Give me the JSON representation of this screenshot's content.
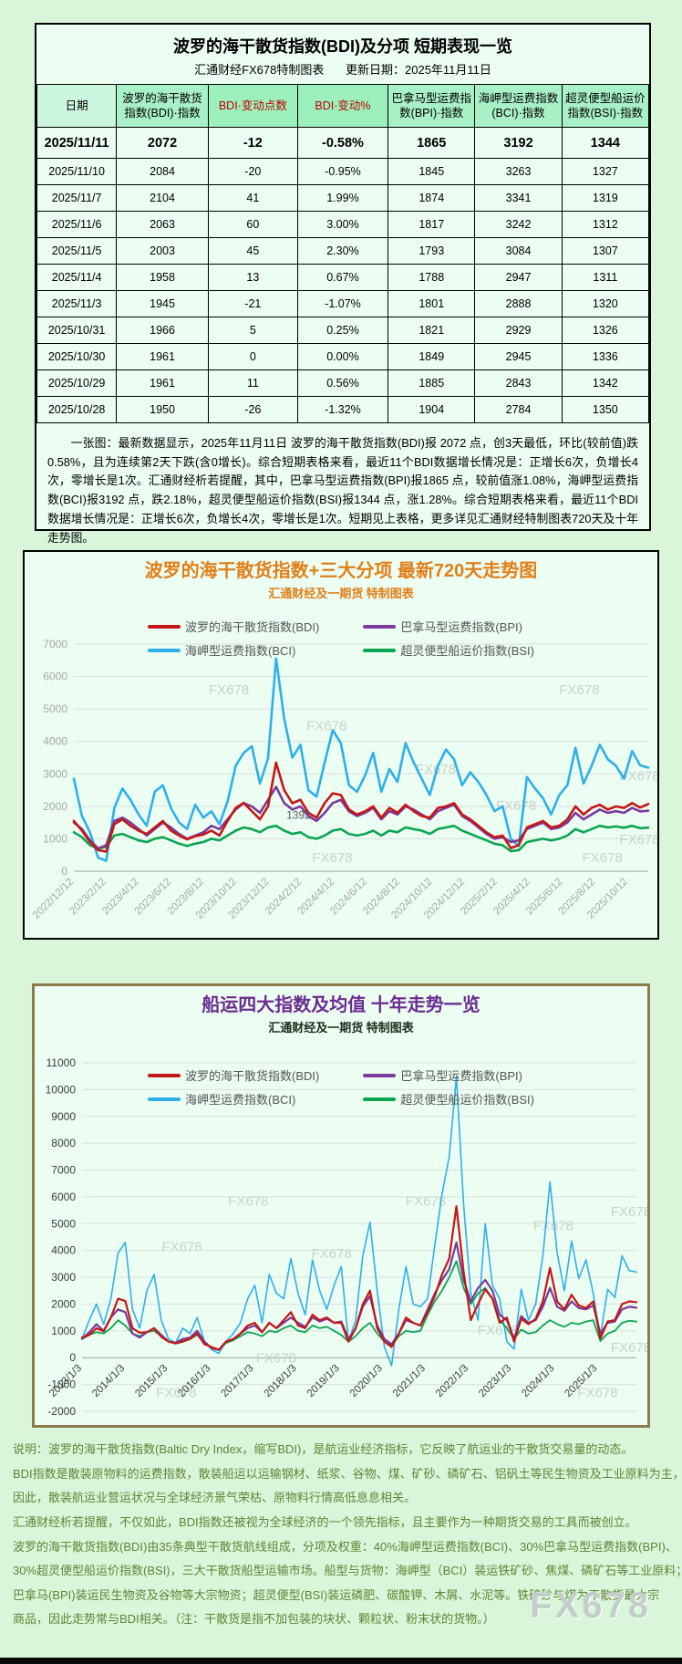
{
  "table_panel": {
    "title": "波罗的海干散货指数(BDI)及分项  短期表现一览",
    "subtitle_left": "汇通财经FX678特制图表",
    "subtitle_right": "更新日期：2025年11月11日",
    "columns": [
      "日期",
      "波罗的海干散货指数(BDI)·指数",
      "BDI·变动点数",
      "BDI·变动%",
      "巴拿马型运费指数(BPI)·指数",
      "海岬型运费指数(BCI)·指数",
      "超灵便型船运价指数(BSI)·指数"
    ],
    "rows": [
      [
        "2025/11/11",
        "2072",
        "-12",
        "-0.58%",
        "1865",
        "3192",
        "1344"
      ],
      [
        "2025/11/10",
        "2084",
        "-20",
        "-0.95%",
        "1845",
        "3263",
        "1327"
      ],
      [
        "2025/11/7",
        "2104",
        "41",
        "1.99%",
        "1874",
        "3341",
        "1319"
      ],
      [
        "2025/11/6",
        "2063",
        "60",
        "3.00%",
        "1817",
        "3242",
        "1312"
      ],
      [
        "2025/11/5",
        "2003",
        "45",
        "2.30%",
        "1793",
        "3084",
        "1307"
      ],
      [
        "2025/11/4",
        "1958",
        "13",
        "0.67%",
        "1788",
        "2947",
        "1311"
      ],
      [
        "2025/11/3",
        "1945",
        "-21",
        "-1.07%",
        "1801",
        "2888",
        "1320"
      ],
      [
        "2025/10/31",
        "1966",
        "5",
        "0.25%",
        "1821",
        "2929",
        "1326"
      ],
      [
        "2025/10/30",
        "1961",
        "0",
        "0.00%",
        "1849",
        "2945",
        "1336"
      ],
      [
        "2025/10/29",
        "1961",
        "11",
        "0.56%",
        "1885",
        "2843",
        "1342"
      ],
      [
        "2025/10/28",
        "1950",
        "-26",
        "-1.32%",
        "1904",
        "2784",
        "1350"
      ]
    ],
    "note": "一张图：最新数据显示，2025年11月11日 波罗的海干散货指数(BDI)报 2072 点，创3天最低，环比(较前值)跌0.58%，且为连续第2天下跌(含0增长)。综合短期表格来看，最近11个BDI数据增长情况是：正增长6次，负增长4次，零增长是1次。汇通财经析若提醒，其中，巴拿马型运费指数(BPI)报1865 点，较前值涨1.08%，海岬型运费指数(BCI)报3192 点，跌2.18%，超灵便型船运价指数(BSI)报1344 点，涨1.28%。综合短期表格来看，最近11个BDI数据增长情况是：正增长6次，负增长4次，零增长是1次。短期见上表格，更多详见汇通财经特制图表720天及十年走势图。"
  },
  "chart_data": [
    {
      "type": "line",
      "name": "bdi-720day",
      "title": "波罗的海干散货指数+三大分项  最新720天走势图",
      "subtitle": "汇通财经及一期货 特制图表",
      "title_color": "#e0801a",
      "subtitle_color": "#e0801a",
      "axis_color": "#a3a9a3",
      "ylim": [
        0,
        7000
      ],
      "ytick_step": 1000,
      "label_span": 0.965,
      "xlabel_base": 0,
      "watermark_text": "FX678",
      "x_labels": [
        "2022/12/12",
        "2023/2/12",
        "2023/4/12",
        "2023/6/12",
        "2023/8/12",
        "2023/10/12",
        "2023/12/12",
        "2024/2/12",
        "2024/4/12",
        "2024/6/12",
        "2024/8/12",
        "2024/10/12",
        "2024/12/12",
        "2025/2/12",
        "2025/4/12",
        "2025/6/12",
        "2025/8/12",
        "2025/10/12"
      ],
      "draw_order": [
        2,
        3,
        1,
        0
      ],
      "series": [
        {
          "id": "bdi",
          "name": "波罗的海干散货指数(BDI)",
          "color": "#c41717",
          "width": 2.6,
          "values": [
            1550,
            1250,
            900,
            650,
            605,
            1450,
            1600,
            1400,
            1250,
            1150,
            1350,
            1550,
            1250,
            1100,
            980,
            1080,
            1130,
            1250,
            1100,
            1550,
            1950,
            2105,
            1850,
            1600,
            2000,
            3346,
            2500,
            2094,
            2200,
            1800,
            1650,
            2100,
            2400,
            2350,
            1900,
            1750,
            1850,
            2000,
            1650,
            1950,
            1800,
            2050,
            1850,
            1700,
            1650,
            1950,
            2000,
            2100,
            1750,
            1600,
            1400,
            1200,
            1050,
            1100,
            715,
            800,
            1350,
            1450,
            1550,
            1350,
            1400,
            1600,
            2000,
            1750,
            1950,
            2050,
            1900,
            2000,
            1950,
            2100,
            1961,
            2072
          ]
        },
        {
          "id": "bpi",
          "name": "巴拿马型运费指数(BPI)",
          "color": "#7a3b9b",
          "width": 2.6,
          "values": [
            1500,
            1300,
            950,
            700,
            800,
            1550,
            1650,
            1500,
            1300,
            1100,
            1300,
            1500,
            1350,
            1150,
            1000,
            1100,
            1200,
            1400,
            1300,
            1600,
            1900,
            2100,
            2000,
            1800,
            2200,
            2600,
            2100,
            1900,
            2000,
            1700,
            1550,
            1800,
            2100,
            2200,
            1850,
            1700,
            1800,
            1950,
            1600,
            1850,
            1750,
            2000,
            1900,
            1750,
            1600,
            1850,
            1950,
            2050,
            1700,
            1550,
            1350,
            1150,
            1000,
            1050,
            900,
            950,
            1300,
            1400,
            1500,
            1300,
            1350,
            1500,
            1800,
            1600,
            1750,
            1900,
            1800,
            1850,
            1800,
            1950,
            1845,
            1865
          ]
        },
        {
          "id": "bci",
          "name": "海岬型运费指数(BCI)",
          "color": "#2fb0e8",
          "width": 2.6,
          "values": [
            2850,
            1700,
            1200,
            420,
            320,
            1950,
            2550,
            2200,
            1750,
            1400,
            2450,
            2650,
            1950,
            1500,
            1300,
            2050,
            1650,
            1850,
            1450,
            2150,
            3250,
            3650,
            3850,
            2700,
            3479,
            6560,
            4700,
            3500,
            3900,
            2500,
            2300,
            3350,
            4350,
            3950,
            2650,
            2450,
            2950,
            3650,
            2450,
            3150,
            2750,
            3950,
            3350,
            2850,
            2350,
            3250,
            3750,
            3450,
            2650,
            3050,
            2750,
            2350,
            1850,
            2000,
            1000,
            780,
            2900,
            2550,
            2250,
            1750,
            2350,
            2650,
            3800,
            2700,
            3250,
            3900,
            3450,
            3250,
            2850,
            3700,
            3263,
            3192
          ]
        },
        {
          "id": "bsi",
          "name": "超灵便型船运价指数(BSI)",
          "color": "#0ba552",
          "width": 2.6,
          "values": [
            1200,
            1050,
            800,
            700,
            750,
            1100,
            1150,
            1050,
            950,
            900,
            1000,
            1050,
            950,
            850,
            780,
            850,
            900,
            1000,
            950,
            1100,
            1250,
            1350,
            1300,
            1200,
            1350,
            1400,
            1250,
            1150,
            1200,
            1050,
            1000,
            1100,
            1250,
            1300,
            1150,
            1100,
            1150,
            1250,
            1100,
            1250,
            1200,
            1350,
            1300,
            1250,
            1150,
            1300,
            1350,
            1400,
            1250,
            1150,
            1050,
            950,
            850,
            800,
            620,
            650,
            900,
            950,
            1000,
            950,
            1000,
            1100,
            1300,
            1200,
            1300,
            1400,
            1350,
            1380,
            1340,
            1400,
            1327,
            1344
          ]
        }
      ],
      "annotations": [
        {
          "text": "1392",
          "fx": 0.37,
          "fy": 0.77
        }
      ],
      "watermarks": [
        [
          0.27,
          0.22
        ],
        [
          0.44,
          0.38
        ],
        [
          0.63,
          0.57
        ],
        [
          0.88,
          0.22
        ],
        [
          0.77,
          0.73
        ],
        [
          0.985,
          0.6
        ],
        [
          0.45,
          0.96
        ],
        [
          0.92,
          0.96
        ],
        [
          0.985,
          0.88
        ]
      ]
    },
    {
      "type": "line",
      "name": "four-index-10year",
      "title": "船运四大指数及均值 十年走势一览",
      "subtitle": "汇通财经及一期货 特制图表",
      "title_color": "#6a2d91",
      "subtitle_color": "#1f2e1f",
      "axis_color": "#3c3c3c",
      "ylim": [
        -2000,
        11000
      ],
      "ytick_step": 1000,
      "label_span": 0.93,
      "xlabel_base": 0,
      "watermark_text": "FX678",
      "x_labels": [
        "2013/1/3",
        "2014/1/3",
        "2015/1/3",
        "2016/1/3",
        "2017/1/3",
        "2018/1/3",
        "2019/1/3",
        "2020/1/3",
        "2021/1/3",
        "2022/1/3",
        "2023/1/3",
        "2024/1/3",
        "2025/1/3"
      ],
      "draw_order": [
        2,
        3,
        1,
        0
      ],
      "series": [
        {
          "id": "bdi",
          "name": "波罗的海干散货指数(BDI)",
          "color": "#c41717",
          "width": 2.2,
          "values": [
            750,
            850,
            1100,
            980,
            1500,
            2200,
            2113,
            1100,
            930,
            950,
            1100,
            780,
            600,
            530,
            600,
            700,
            900,
            500,
            400,
            290,
            600,
            680,
            900,
            1200,
            1300,
            950,
            1300,
            1100,
            1400,
            1700,
            1200,
            1100,
            1600,
            1400,
            1500,
            1300,
            1300,
            600,
            1100,
            2000,
            2500,
            1100,
            600,
            400,
            900,
            1500,
            1300,
            1200,
            1700,
            2300,
            3100,
            3700,
            5650,
            3200,
            1400,
            2000,
            2550,
            2200,
            1300,
            1500,
            600,
            1450,
            1250,
            1450,
            2105,
            3346,
            2094,
            1800,
            2350,
            1950,
            1850,
            2100,
            715,
            1350,
            1400,
            2000,
            2100,
            2072
          ]
        },
        {
          "id": "bpi",
          "name": "巴拿马型运费指数(BPI)",
          "color": "#7a3b9b",
          "width": 2.2,
          "values": [
            700,
            950,
            1250,
            1000,
            1500,
            1800,
            1700,
            900,
            750,
            950,
            1100,
            850,
            600,
            560,
            700,
            750,
            1000,
            600,
            350,
            290,
            600,
            700,
            900,
            1100,
            1200,
            950,
            1300,
            1100,
            1300,
            1500,
            1300,
            1150,
            1500,
            1350,
            1450,
            1300,
            1350,
            700,
            1100,
            1900,
            2300,
            1200,
            700,
            500,
            900,
            1400,
            1300,
            1200,
            1800,
            2400,
            2900,
            3300,
            4300,
            2900,
            2100,
            2600,
            2900,
            2500,
            1600,
            1400,
            700,
            1550,
            1300,
            1400,
            1900,
            2600,
            1900,
            1750,
            2100,
            1850,
            1800,
            1950,
            900,
            1300,
            1350,
            1800,
            1900,
            1865
          ]
        },
        {
          "id": "bci",
          "name": "海岬型运费指数(BCI)",
          "color": "#2fb0e8",
          "width": 1.6,
          "values": [
            700,
            1400,
            2000,
            1250,
            2200,
            3900,
            4300,
            1800,
            1100,
            2500,
            3100,
            1400,
            700,
            550,
            1100,
            900,
            1500,
            600,
            300,
            160,
            600,
            900,
            1300,
            2200,
            2700,
            1300,
            3100,
            2400,
            2200,
            3700,
            2400,
            1600,
            3650,
            2500,
            1800,
            2700,
            3400,
            600,
            1400,
            3800,
            5050,
            2500,
            400,
            -300,
            1800,
            3400,
            2000,
            1900,
            2200,
            4200,
            6100,
            7500,
            10485,
            5700,
            2400,
            1400,
            5000,
            2700,
            2200,
            600,
            320,
            2550,
            1400,
            2000,
            3800,
            6560,
            3900,
            2500,
            4350,
            2950,
            3650,
            2400,
            780,
            2550,
            2250,
            3800,
            3250,
            3192
          ]
        },
        {
          "id": "bsi",
          "name": "超灵便型船运价指数(BSI)",
          "color": "#0ba552",
          "width": 1.8,
          "values": [
            700,
            850,
            950,
            900,
            1100,
            1400,
            1200,
            900,
            800,
            950,
            1000,
            800,
            600,
            550,
            650,
            700,
            850,
            550,
            350,
            300,
            550,
            650,
            800,
            950,
            900,
            800,
            1000,
            950,
            1100,
            1200,
            1000,
            950,
            1200,
            1100,
            1150,
            1000,
            850,
            600,
            800,
            1100,
            1300,
            900,
            600,
            450,
            800,
            1000,
            950,
            1000,
            1600,
            2100,
            2500,
            3000,
            3600,
            2600,
            2000,
            2400,
            2600,
            2200,
            1400,
            1100,
            700,
            1050,
            900,
            950,
            1200,
            1400,
            1250,
            1150,
            1300,
            1250,
            1350,
            1400,
            620,
            900,
            1000,
            1300,
            1380,
            1344
          ]
        }
      ],
      "annotations": [],
      "watermarks": [
        [
          0.3,
          0.41
        ],
        [
          0.62,
          0.41
        ],
        [
          0.18,
          0.54
        ],
        [
          0.45,
          0.56
        ],
        [
          0.85,
          0.48
        ],
        [
          0.99,
          0.44
        ],
        [
          0.35,
          0.86
        ],
        [
          0.75,
          0.78
        ],
        [
          0.99,
          0.83
        ],
        [
          0.17,
          0.96
        ],
        [
          0.93,
          0.96
        ]
      ]
    }
  ],
  "footer": {
    "lines": [
      "说明：波罗的海干散货指数(Baltic Dry Index，缩写BDI)，是航运业经济指标，它反映了航运业的干散货交易量的动态。",
      "BDI指数是散装原物料的运费指数，散装船运以运输钢材、纸浆、谷物、煤、矿砂、磷矿石、铝矾土等民生物资及工业原料为主，",
      "因此，散装航运业营运状况与全球经济景气荣枯、原物料行情高低息息相关。",
      "汇通财经析若提醒，不仅如此，BDI指数还被视为全球经济的一个领先指标，且主要作为一种期货交易的工具而被创立。",
      "波罗的海干散货指数(BDI)由35条典型干散货航线组成，分项及权重：40%海岬型运费指数(BCI)、30%巴拿马型运费指数(BPI)、",
      "30%超灵便型船运价指数(BSI)，三大干散货船型运输市场。船型与货物：海岬型（BCI）装运铁矿砂、焦煤、磷矿石等工业原料；",
      "巴拿马(BPI)装运民生物资及谷物等大宗物资；超灵便型(BSI)装运磷肥、碳酸钾、木屑、水泥等。铁矿砂与煤为干散货最大宗",
      "商品，因此走势常与BDI相关。（注：干散货是指不加包装的块状、颗粒状、粉末状的货物。）"
    ],
    "watermark": "FX678"
  }
}
